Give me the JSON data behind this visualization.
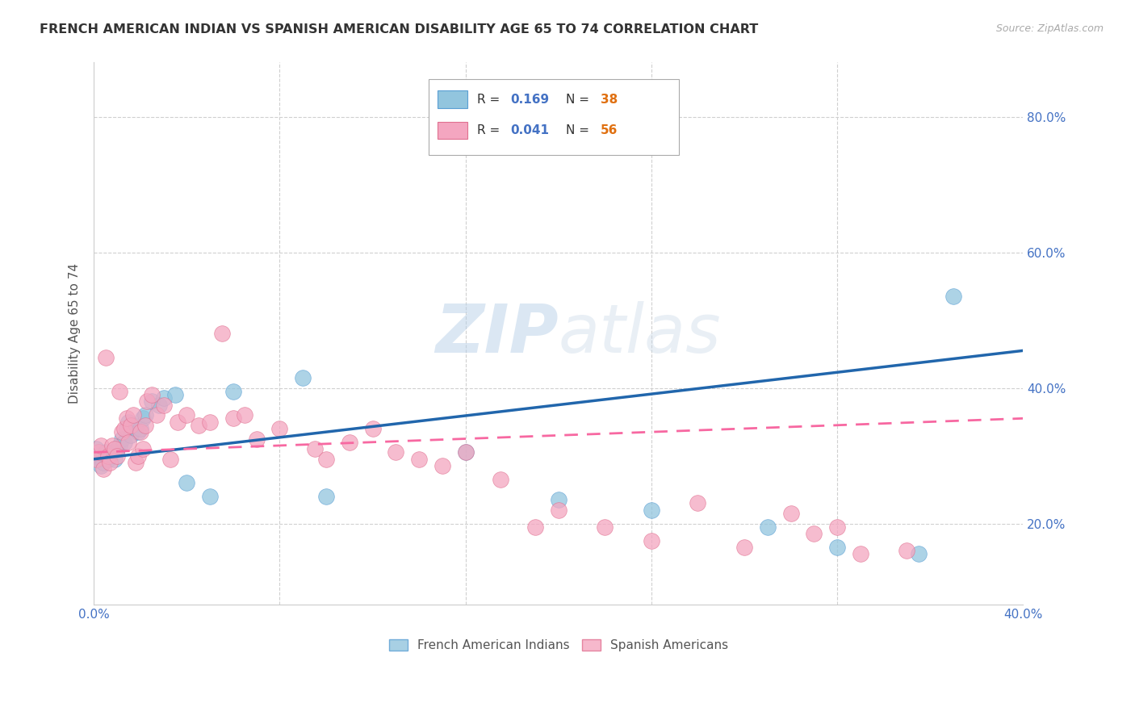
{
  "title": "FRENCH AMERICAN INDIAN VS SPANISH AMERICAN DISABILITY AGE 65 TO 74 CORRELATION CHART",
  "source": "Source: ZipAtlas.com",
  "ylabel": "Disability Age 65 to 74",
  "xlim": [
    0.0,
    0.4
  ],
  "ylim": [
    0.08,
    0.88
  ],
  "xticks": [
    0.0,
    0.08,
    0.16,
    0.24,
    0.32,
    0.4
  ],
  "yticks": [
    0.2,
    0.4,
    0.6,
    0.8
  ],
  "blue_color": "#92c5de",
  "pink_color": "#f4a6c0",
  "line_blue_color": "#2166ac",
  "line_pink_color": "#f768a1",
  "watermark": "ZIPatlas",
  "axis_color": "#4472c4",
  "background_color": "#ffffff",
  "grid_color": "#d0d0d0",
  "blue_x": [
    0.001,
    0.002,
    0.003,
    0.004,
    0.005,
    0.006,
    0.007,
    0.008,
    0.009,
    0.01,
    0.011,
    0.012,
    0.013,
    0.014,
    0.015,
    0.016,
    0.017,
    0.018,
    0.019,
    0.02,
    0.021,
    0.022,
    0.025,
    0.028,
    0.03,
    0.035,
    0.04,
    0.05,
    0.06,
    0.09,
    0.1,
    0.16,
    0.2,
    0.24,
    0.29,
    0.32,
    0.355,
    0.37
  ],
  "blue_y": [
    0.31,
    0.295,
    0.285,
    0.29,
    0.305,
    0.295,
    0.3,
    0.305,
    0.295,
    0.31,
    0.315,
    0.325,
    0.32,
    0.34,
    0.35,
    0.33,
    0.345,
    0.34,
    0.335,
    0.34,
    0.355,
    0.36,
    0.38,
    0.375,
    0.385,
    0.39,
    0.26,
    0.24,
    0.395,
    0.415,
    0.24,
    0.305,
    0.235,
    0.22,
    0.195,
    0.165,
    0.155,
    0.535
  ],
  "pink_x": [
    0.001,
    0.002,
    0.003,
    0.004,
    0.005,
    0.006,
    0.007,
    0.008,
    0.009,
    0.01,
    0.011,
    0.012,
    0.013,
    0.014,
    0.015,
    0.016,
    0.017,
    0.018,
    0.019,
    0.02,
    0.021,
    0.022,
    0.023,
    0.025,
    0.027,
    0.03,
    0.033,
    0.036,
    0.04,
    0.045,
    0.05,
    0.055,
    0.06,
    0.065,
    0.07,
    0.08,
    0.095,
    0.1,
    0.11,
    0.12,
    0.13,
    0.14,
    0.15,
    0.16,
    0.175,
    0.19,
    0.2,
    0.22,
    0.24,
    0.26,
    0.28,
    0.3,
    0.31,
    0.32,
    0.33,
    0.35
  ],
  "pink_y": [
    0.295,
    0.305,
    0.315,
    0.28,
    0.445,
    0.3,
    0.29,
    0.315,
    0.31,
    0.3,
    0.395,
    0.335,
    0.34,
    0.355,
    0.32,
    0.345,
    0.36,
    0.29,
    0.3,
    0.335,
    0.31,
    0.345,
    0.38,
    0.39,
    0.36,
    0.375,
    0.295,
    0.35,
    0.36,
    0.345,
    0.35,
    0.48,
    0.355,
    0.36,
    0.325,
    0.34,
    0.31,
    0.295,
    0.32,
    0.34,
    0.305,
    0.295,
    0.285,
    0.305,
    0.265,
    0.195,
    0.22,
    0.195,
    0.175,
    0.23,
    0.165,
    0.215,
    0.185,
    0.195,
    0.155,
    0.16
  ],
  "blue_line_x0": 0.0,
  "blue_line_y0": 0.295,
  "blue_line_x1": 0.4,
  "blue_line_y1": 0.455,
  "pink_line_x0": 0.0,
  "pink_line_y0": 0.305,
  "pink_line_x1": 0.4,
  "pink_line_y1": 0.355
}
